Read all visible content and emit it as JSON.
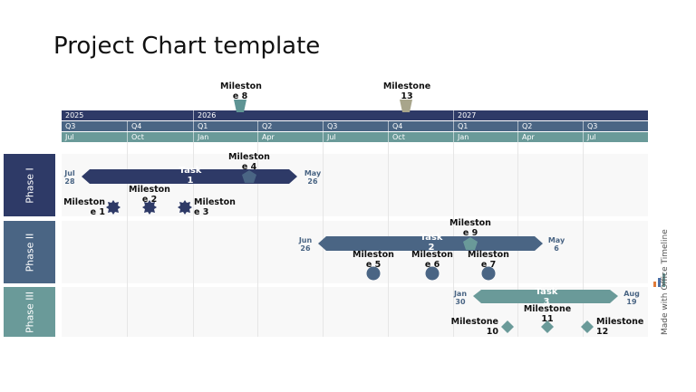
{
  "title": "Project Chart template",
  "timescale": {
    "years": [
      "2025",
      "2026",
      "2027"
    ],
    "quarters": [
      "Q3",
      "Q4",
      "Q1",
      "Q2",
      "Q3",
      "Q4",
      "Q1",
      "Q2",
      "Q3"
    ],
    "months": [
      "Jul",
      "Oct",
      "Jan",
      "Apr",
      "Jul",
      "Oct",
      "Jan",
      "Apr",
      "Jul"
    ]
  },
  "top_milestones": [
    {
      "label": "Milestone 8",
      "line1": "Mileston",
      "line2": "e 8",
      "color": "#5e9494"
    },
    {
      "label": "Milestone 13",
      "line1": "Milestone",
      "line2": "13",
      "color": "#a8a58b"
    }
  ],
  "phases": [
    {
      "name": "Phase I",
      "color": "#2e3a67",
      "task": {
        "name": "Task 1",
        "line1": "Task",
        "line2": "1",
        "start_mon": "Jul",
        "start_day": "28",
        "end_mon": "May",
        "end_day": "26",
        "color": "#2e3a67"
      },
      "milestones": [
        {
          "label": "Milestone 1",
          "line1": "Mileston",
          "line2": "e 1",
          "shape": "star"
        },
        {
          "label": "Milestone 2",
          "line1": "Mileston",
          "line2": "e 2",
          "shape": "star"
        },
        {
          "label": "Milestone 3",
          "line1": "Mileston",
          "line2": "e 3",
          "shape": "star"
        },
        {
          "label": "Milestone 4",
          "line1": "Mileston",
          "line2": "e 4",
          "shape": "pentagon"
        }
      ]
    },
    {
      "name": "Phase II",
      "color": "#4a6584",
      "task": {
        "name": "Task 2",
        "line1": "Task",
        "line2": "2",
        "start_mon": "Jun",
        "start_day": "26",
        "end_mon": "May",
        "end_day": "6",
        "color": "#4a6584"
      },
      "milestones": [
        {
          "label": "Milestone 5",
          "line1": "Mileston",
          "line2": "e 5",
          "shape": "circle"
        },
        {
          "label": "Milestone 6",
          "line1": "Mileston",
          "line2": "e 6",
          "shape": "circle"
        },
        {
          "label": "Milestone 7",
          "line1": "Mileston",
          "line2": "e 7",
          "shape": "circle"
        },
        {
          "label": "Milestone 9",
          "line1": "Mileston",
          "line2": "e 9",
          "shape": "pentagon"
        }
      ]
    },
    {
      "name": "Phase III",
      "color": "#6a9a99",
      "task": {
        "name": "Task 3",
        "line1": "Task",
        "line2": "3",
        "start_mon": "Jan",
        "start_day": "30",
        "end_mon": "Aug",
        "end_day": "19",
        "color": "#6a9a99"
      },
      "milestones": [
        {
          "label": "Milestone 10",
          "line1": "Milestone",
          "line2": "10",
          "shape": "diamond"
        },
        {
          "label": "Milestone 11",
          "line1": "Milestone",
          "line2": "11",
          "shape": "diamond"
        },
        {
          "label": "Milestone 12",
          "line1": "Milestone",
          "line2": "12",
          "shape": "diamond"
        }
      ]
    }
  ],
  "watermark": "Made with Office Timeline"
}
